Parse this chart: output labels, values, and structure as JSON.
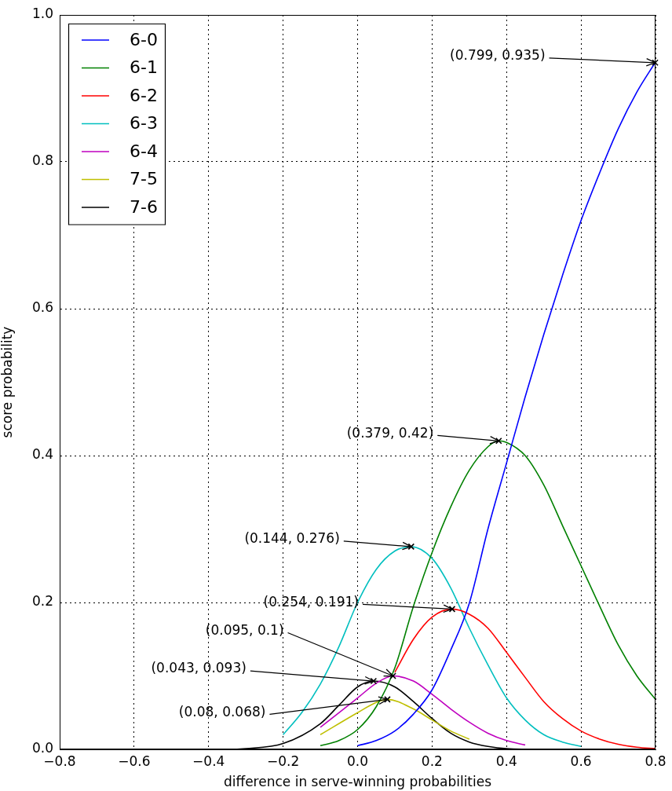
{
  "chart_data": {
    "type": "line",
    "xlabel": "difference in serve-winning probabilities",
    "ylabel": "score probability",
    "xlim": [
      -0.8,
      0.8
    ],
    "ylim": [
      0,
      1
    ],
    "xticks": [
      {
        "value": -0.8,
        "label": "−0.8"
      },
      {
        "value": -0.6,
        "label": "−0.6"
      },
      {
        "value": -0.4,
        "label": "−0.4"
      },
      {
        "value": -0.2,
        "label": "−0.2"
      },
      {
        "value": 0,
        "label": "0.0"
      },
      0.2,
      0.4,
      0.6,
      0.8
    ],
    "yticks": [
      {
        "value": 0,
        "label": "0.0"
      },
      0.2,
      0.4,
      0.6,
      0.8,
      {
        "value": 1,
        "label": "1.0"
      }
    ],
    "grid": true,
    "legend": "top left",
    "marker": "none",
    "line_style": "solid",
    "series": [
      {
        "name": "6-0",
        "color": "#0000ff",
        "x": [
          0,
          0.05,
          0.1,
          0.15,
          0.2,
          0.25,
          0.3,
          0.35,
          0.4,
          0.45,
          0.5,
          0.55,
          0.6,
          0.65,
          0.7,
          0.75,
          0.799
        ],
        "values": [
          0.005,
          0.012,
          0.025,
          0.048,
          0.081,
          0.135,
          0.199,
          0.3,
          0.39,
          0.48,
          0.565,
          0.645,
          0.72,
          0.785,
          0.845,
          0.895,
          0.935
        ]
      },
      {
        "name": "6-1",
        "color": "#008000",
        "x": [
          -0.1,
          -0.05,
          0,
          0.05,
          0.1,
          0.15,
          0.2,
          0.25,
          0.3,
          0.35,
          0.379,
          0.4,
          0.45,
          0.5,
          0.55,
          0.6,
          0.65,
          0.7,
          0.75,
          0.8
        ],
        "values": [
          0.005,
          0.012,
          0.027,
          0.058,
          0.111,
          0.195,
          0.268,
          0.33,
          0.38,
          0.412,
          0.42,
          0.418,
          0.4,
          0.36,
          0.305,
          0.25,
          0.195,
          0.142,
          0.1,
          0.068
        ]
      },
      {
        "name": "6-2",
        "color": "#ff0000",
        "x": [
          0.1,
          0.15,
          0.2,
          0.254,
          0.3,
          0.35,
          0.4,
          0.45,
          0.5,
          0.55,
          0.6,
          0.65,
          0.7,
          0.75,
          0.8
        ],
        "values": [
          0.105,
          0.15,
          0.18,
          0.191,
          0.184,
          0.165,
          0.132,
          0.098,
          0.065,
          0.042,
          0.025,
          0.014,
          0.007,
          0.003,
          0.001
        ]
      },
      {
        "name": "6-3",
        "color": "#00bfbf",
        "x": [
          -0.2,
          -0.15,
          -0.1,
          -0.05,
          0,
          0.05,
          0.1,
          0.144,
          0.2,
          0.25,
          0.3,
          0.35,
          0.4,
          0.45,
          0.5,
          0.55,
          0.6
        ],
        "values": [
          0.02,
          0.05,
          0.089,
          0.14,
          0.2,
          0.245,
          0.27,
          0.276,
          0.26,
          0.22,
          0.165,
          0.115,
          0.07,
          0.04,
          0.02,
          0.01,
          0.004
        ]
      },
      {
        "name": "6-4",
        "color": "#bf00bf",
        "x": [
          -0.1,
          0,
          0.05,
          0.095,
          0.15,
          0.2,
          0.25,
          0.3,
          0.35,
          0.4,
          0.45
        ],
        "values": [
          0.03,
          0.07,
          0.09,
          0.1,
          0.093,
          0.075,
          0.055,
          0.037,
          0.022,
          0.012,
          0.006
        ]
      },
      {
        "name": "7-5",
        "color": "#bfbf00",
        "x": [
          -0.1,
          0,
          0.05,
          0.08,
          0.15,
          0.2,
          0.25,
          0.3
        ],
        "values": [
          0.02,
          0.05,
          0.064,
          0.068,
          0.055,
          0.04,
          0.025,
          0.014
        ]
      },
      {
        "name": "7-6",
        "color": "#000000",
        "x": [
          -0.8,
          -0.35,
          -0.3,
          -0.2,
          -0.1,
          -0.05,
          0,
          0.043,
          0.1,
          0.15,
          0.2,
          0.25,
          0.3,
          0.35,
          0.4,
          0.5,
          0.8
        ],
        "values": [
          0,
          0,
          0.001,
          0.008,
          0.035,
          0.06,
          0.085,
          0.093,
          0.085,
          0.065,
          0.042,
          0.022,
          0.01,
          0.004,
          0.001,
          0,
          0
        ]
      }
    ],
    "annotations": [
      {
        "text": "(0.799, 0.935)",
        "x": 0.799,
        "y": 0.935
      },
      {
        "text": "(0.379, 0.42)",
        "x": 0.379,
        "y": 0.42
      },
      {
        "text": "(0.144, 0.276)",
        "x": 0.144,
        "y": 0.276
      },
      {
        "text": "(0.254, 0.191)",
        "x": 0.254,
        "y": 0.191
      },
      {
        "text": "(0.095, 0.1)",
        "x": 0.095,
        "y": 0.1
      },
      {
        "text": "(0.043, 0.093)",
        "x": 0.043,
        "y": 0.093
      },
      {
        "text": "(0.08, 0.068)",
        "x": 0.08,
        "y": 0.068
      }
    ]
  }
}
